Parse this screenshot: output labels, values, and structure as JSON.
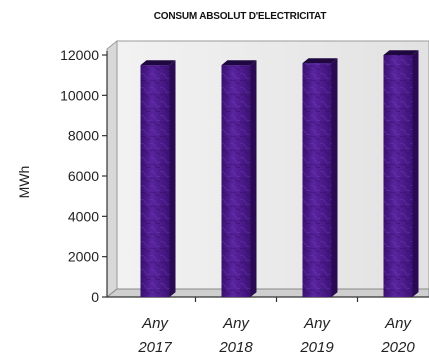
{
  "chart_data": {
    "type": "bar",
    "title": "CONSUM ABSOLUT D'ELECTRICITAT",
    "ylabel": "MWh",
    "xlabel": "",
    "ylim": [
      0,
      12000
    ],
    "yticks": [
      0,
      2000,
      4000,
      6000,
      8000,
      10000,
      12000
    ],
    "categories": [
      [
        "Any",
        "2017"
      ],
      [
        "Any",
        "2018"
      ],
      [
        "Any",
        "2019"
      ],
      [
        "Any",
        "2020"
      ]
    ],
    "values": [
      11500,
      11500,
      11600,
      12000
    ],
    "colors": {
      "bar_front": "#4a1a8a",
      "bar_side": "#2a0a52",
      "bar_top": "#1f0840",
      "wall": "#e6e6e6",
      "floor": "#d0d0d0",
      "axis": "#333333"
    },
    "grid": false,
    "three_d": true
  }
}
